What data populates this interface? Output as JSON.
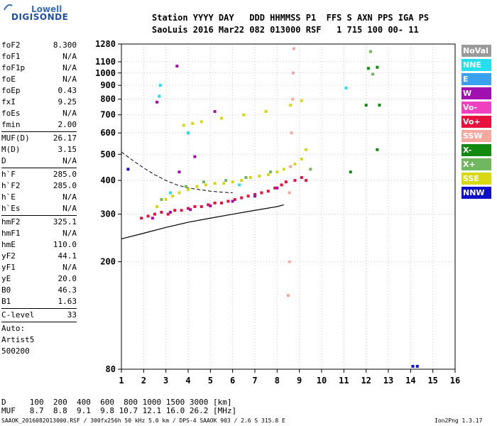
{
  "logo": {
    "top": "Lowell",
    "bottom": "DIGISONDE"
  },
  "header": {
    "line1": "Station YYYY DAY   DDD HHMMSS P1  FFS S AXN PPS IGA PS",
    "line2": "SaoLuis 2016 Mar22 082 013000 RSF   1 715 100 00- 11"
  },
  "params": [
    {
      "label": "foF2",
      "value": "8.300"
    },
    {
      "label": "foF1",
      "value": "N/A"
    },
    {
      "label": "foF1p",
      "value": "N/A"
    },
    {
      "label": "foE",
      "value": "N/A"
    },
    {
      "label": "foEp",
      "value": "0.43"
    },
    {
      "label": "fxI",
      "value": "9.25"
    },
    {
      "label": "foEs",
      "value": "N/A"
    },
    {
      "label": "fmin",
      "value": "2.00"
    },
    {
      "sep": true
    },
    {
      "label": "MUF(D)",
      "value": "26.17"
    },
    {
      "label": "M(D)",
      "value": "3.15"
    },
    {
      "label": "D",
      "value": "N/A"
    },
    {
      "sep": true
    },
    {
      "label": "h`F",
      "value": "285.0"
    },
    {
      "label": "h`F2",
      "value": "285.0"
    },
    {
      "label": "h`E",
      "value": "N/A"
    },
    {
      "label": "h`Es",
      "value": "N/A"
    },
    {
      "sep": true
    },
    {
      "label": "hmF2",
      "value": "325.1"
    },
    {
      "label": "hmF1",
      "value": "N/A"
    },
    {
      "label": "hmE",
      "value": "110.0"
    },
    {
      "label": "yF2",
      "value": "44.1"
    },
    {
      "label": "yF1",
      "value": "N/A"
    },
    {
      "label": "yE",
      "value": "20.0"
    },
    {
      "label": "B0",
      "value": "46.3"
    },
    {
      "label": "B1",
      "value": "1.63"
    },
    {
      "sep": true
    },
    {
      "label": "C-level",
      "value": "33"
    },
    {
      "sep": true
    },
    {
      "label": "Auto:",
      "value": ""
    },
    {
      "label": "Artist5",
      "value": ""
    },
    {
      "label": "500200",
      "value": ""
    }
  ],
  "legend": [
    {
      "label": "NoVal",
      "color": "#9a9a9a"
    },
    {
      "label": "NNE",
      "color": "#21e0f0"
    },
    {
      "label": "E",
      "color": "#3aa0f0"
    },
    {
      "label": "W",
      "color": "#a010b0"
    },
    {
      "label": "Vo-",
      "color": "#f040c0"
    },
    {
      "label": "Vo+",
      "color": "#e8103c"
    },
    {
      "label": "SSW",
      "color": "#f4a8a0"
    },
    {
      "label": "X-",
      "color": "#108a10"
    },
    {
      "label": "X+",
      "color": "#70b860"
    },
    {
      "label": "SSE",
      "color": "#d8d810"
    },
    {
      "label": "NNW",
      "color": "#1010c8"
    }
  ],
  "chart_data": {
    "type": "scatter",
    "title": "",
    "xlabel": "",
    "ylabel": "",
    "xlim": [
      1,
      16
    ],
    "x_ticks": [
      1,
      2,
      3,
      4,
      5,
      6,
      7,
      8,
      9,
      10,
      11,
      12,
      13,
      14,
      15,
      16
    ],
    "ylim": [
      80,
      1280
    ],
    "y_ticks": [
      80,
      200,
      300,
      400,
      500,
      600,
      700,
      800,
      900,
      1000,
      1100,
      1280
    ],
    "y_scale": "log",
    "grid": true,
    "series": [
      {
        "name": "Vo+",
        "color": "#e8103c",
        "points": [
          [
            1.9,
            290
          ],
          [
            2.2,
            295
          ],
          [
            2.5,
            300
          ],
          [
            2.8,
            305
          ],
          [
            3.1,
            300
          ],
          [
            3.4,
            310
          ],
          [
            3.7,
            310
          ],
          [
            4.0,
            315
          ],
          [
            4.3,
            320
          ],
          [
            4.6,
            320
          ],
          [
            4.9,
            325
          ],
          [
            5.2,
            330
          ],
          [
            5.5,
            330
          ],
          [
            5.8,
            335
          ],
          [
            6.1,
            340
          ],
          [
            6.4,
            345
          ],
          [
            6.7,
            350
          ],
          [
            7.0,
            355
          ],
          [
            7.3,
            360
          ],
          [
            7.6,
            365
          ],
          [
            7.9,
            375
          ],
          [
            8.2,
            385
          ],
          [
            8.4,
            395
          ],
          [
            8.8,
            400
          ],
          [
            9.1,
            410
          ],
          [
            9.3,
            400
          ]
        ]
      },
      {
        "name": "SSE",
        "color": "#d8d810",
        "points": [
          [
            2.6,
            320
          ],
          [
            3.0,
            340
          ],
          [
            3.3,
            350
          ],
          [
            3.6,
            360
          ],
          [
            4.0,
            370
          ],
          [
            4.4,
            380
          ],
          [
            4.8,
            385
          ],
          [
            5.2,
            390
          ],
          [
            5.6,
            390
          ],
          [
            6.0,
            395
          ],
          [
            6.4,
            400
          ],
          [
            6.8,
            410
          ],
          [
            7.2,
            415
          ],
          [
            7.6,
            420
          ],
          [
            8.0,
            430
          ],
          [
            8.3,
            440
          ],
          [
            8.8,
            460
          ],
          [
            9.1,
            480
          ],
          [
            9.3,
            520
          ],
          [
            3.8,
            640
          ],
          [
            4.2,
            650
          ],
          [
            4.6,
            660
          ],
          [
            5.5,
            680
          ],
          [
            6.5,
            700
          ],
          [
            7.5,
            720
          ],
          [
            8.6,
            760
          ],
          [
            9.1,
            790
          ]
        ]
      },
      {
        "name": "W",
        "color": "#a010b0",
        "points": [
          [
            2.4,
            290
          ],
          [
            3.2,
            305
          ],
          [
            4.1,
            312
          ],
          [
            5.0,
            322
          ],
          [
            6.0,
            335
          ],
          [
            7.0,
            350
          ],
          [
            8.0,
            375
          ],
          [
            3.6,
            430
          ],
          [
            4.3,
            490
          ],
          [
            4.0,
            600
          ],
          [
            5.2,
            720
          ],
          [
            2.6,
            780
          ],
          [
            3.5,
            1060
          ]
        ]
      },
      {
        "name": "X+",
        "color": "#70b860",
        "points": [
          [
            2.8,
            340
          ],
          [
            3.9,
            380
          ],
          [
            4.7,
            395
          ],
          [
            5.7,
            400
          ],
          [
            6.6,
            410
          ],
          [
            7.7,
            430
          ],
          [
            9.5,
            440
          ],
          [
            12.2,
            1200
          ],
          [
            12.3,
            990
          ]
        ]
      },
      {
        "name": "SSW",
        "color": "#f4a8a0",
        "points": [
          [
            8.55,
            360
          ],
          [
            8.6,
            450
          ],
          [
            8.65,
            600
          ],
          [
            8.7,
            800
          ],
          [
            8.72,
            1000
          ],
          [
            8.75,
            1230
          ],
          [
            8.5,
            150
          ],
          [
            8.55,
            200
          ]
        ]
      },
      {
        "name": "NNE",
        "color": "#21e0f0",
        "points": [
          [
            2.7,
            820
          ],
          [
            2.75,
            900
          ],
          [
            4.0,
            600
          ],
          [
            11.1,
            880
          ],
          [
            6.3,
            385
          ],
          [
            3.2,
            360
          ]
        ]
      },
      {
        "name": "X-",
        "color": "#108a10",
        "points": [
          [
            12.0,
            760
          ],
          [
            12.1,
            1040
          ],
          [
            12.5,
            1050
          ],
          [
            12.5,
            520
          ],
          [
            11.3,
            430
          ],
          [
            12.6,
            760
          ]
        ]
      },
      {
        "name": "NNW",
        "color": "#1010c8",
        "points": [
          [
            14.1,
            82
          ],
          [
            14.3,
            82
          ],
          [
            1.3,
            440
          ]
        ]
      }
    ],
    "profile_line": {
      "x": [
        1,
        2,
        3,
        4,
        5,
        6,
        7,
        8,
        8.3
      ],
      "y": [
        243,
        255,
        268,
        280,
        290,
        300,
        310,
        320,
        325
      ]
    },
    "dashed_line": {
      "x": [
        1,
        1.5,
        2,
        2.5,
        3,
        3.5,
        4,
        4.5,
        5,
        5.5,
        6
      ],
      "y": [
        510,
        475,
        445,
        420,
        400,
        385,
        375,
        370,
        365,
        362,
        360
      ]
    }
  },
  "bottom_scale": {
    "d_row": "D     100  200  400  600  800 1000 1500 3000 [km]",
    "muf_row": "MUF   8.7  8.8  9.1  9.8 10.7 12.1 16.0 26.2 [MHz]"
  },
  "footer": {
    "left": "SAAOK_2016082013000.RSF / 300fx256h 50 kHz 5.0 km / DPS-4 SAAOK 903 / 2.6 S 315.8 E",
    "right": "Ion2Png 1.3.17"
  }
}
